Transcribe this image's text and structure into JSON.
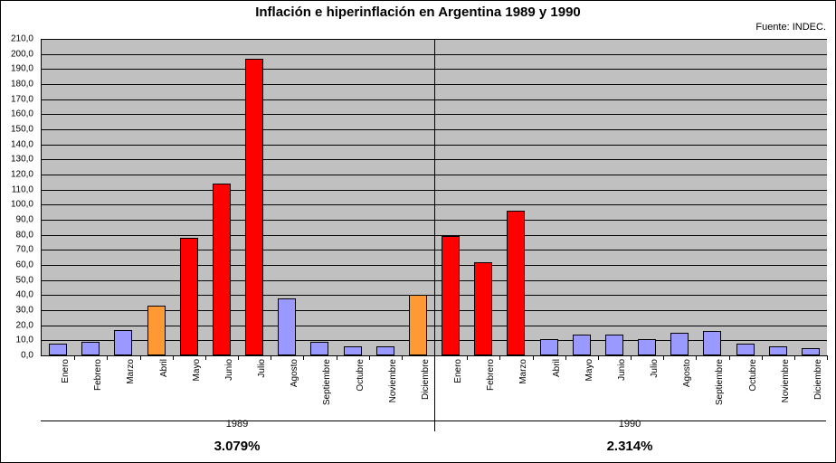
{
  "title": "Inflación e hiperinflación en Argentina 1989 y 1990",
  "source": "Fuente: INDEC.",
  "chart": {
    "type": "bar",
    "ylim": [
      0,
      210
    ],
    "ytick_step": 10,
    "ytick_format": "decimal_comma_one",
    "plot_background": "#c0c0c0",
    "grid_color": "#000000",
    "frame_border_color": "#000000",
    "bar_border_color": "#000000",
    "label_fontsize": 10,
    "title_fontsize": 15,
    "groups": [
      {
        "name": "1989",
        "annual_label": "3.079%"
      },
      {
        "name": "1990",
        "annual_label": "2.314%"
      }
    ],
    "palette": {
      "low": "#9999ff",
      "mid": "#ff9933",
      "high": "#ff0000"
    },
    "categories": [
      "Enero",
      "Febrero",
      "Marzo",
      "Abril",
      "Mayo",
      "Junio",
      "Julio",
      "Agosto",
      "Septiembre",
      "Octubre",
      "Noviembre",
      "Diciembre",
      "Enero",
      "Febrero",
      "Marzo",
      "Abril",
      "Mayo",
      "Junio",
      "Julio",
      "Agosto",
      "Septiembre",
      "Octubre",
      "Noviembre",
      "Diciembre"
    ],
    "values": [
      8,
      9,
      17,
      33,
      78,
      114,
      197,
      38,
      9,
      6,
      6,
      40,
      79,
      62,
      96,
      11,
      14,
      14,
      11,
      15,
      16,
      8,
      6,
      5
    ],
    "bar_color_class": [
      "low",
      "low",
      "low",
      "mid",
      "high",
      "high",
      "high",
      "low",
      "low",
      "low",
      "low",
      "mid",
      "high",
      "high",
      "high",
      "low",
      "low",
      "low",
      "low",
      "low",
      "low",
      "low",
      "low",
      "low"
    ]
  }
}
